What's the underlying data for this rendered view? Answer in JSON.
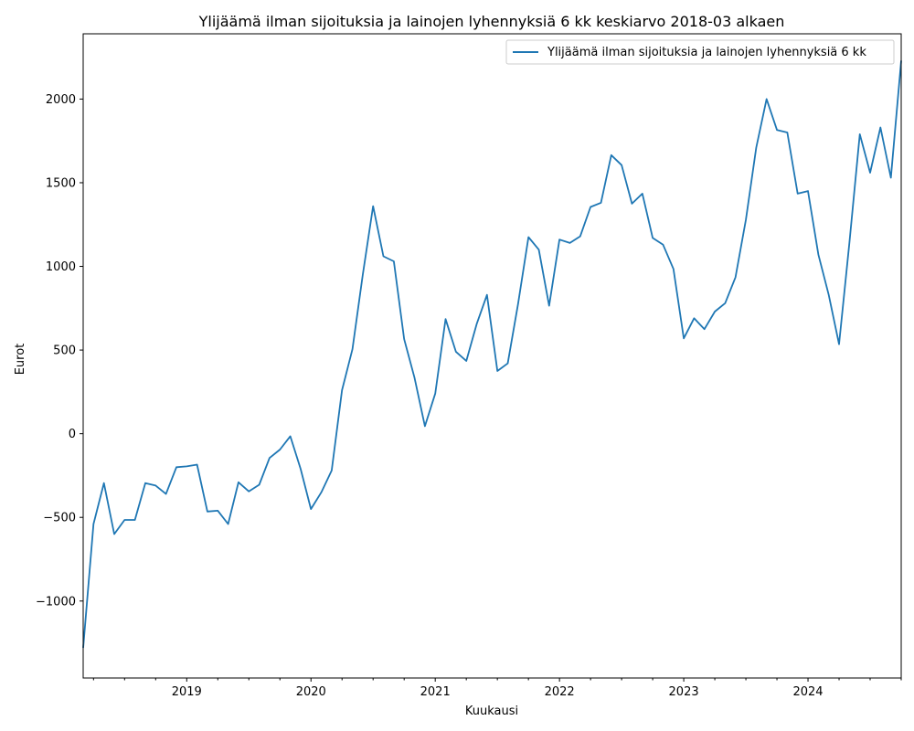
{
  "chart_data": {
    "type": "line",
    "title": "Ylijäämä ilman sijoituksia ja lainojen lyhennyksiä 6 kk keskiarvo 2018-03 alkaen",
    "xlabel": "Kuukausi",
    "ylabel": "Eurot",
    "xlim": [
      "2018-03",
      "2024-10"
    ],
    "ylim": [
      -1460,
      2390
    ],
    "y_ticks": [
      -1000,
      -500,
      0,
      500,
      1000,
      1500,
      2000
    ],
    "x_ticks": [
      "2019",
      "2020",
      "2021",
      "2022",
      "2023",
      "2024"
    ],
    "grid": false,
    "legend_position": "top-right",
    "line_color": "#1f77b4",
    "series": [
      {
        "name": "Ylijäämä ilman sijoituksia ja lainojen lyhennyksiä 6 kk",
        "x": [
          "2018-03",
          "2018-04",
          "2018-05",
          "2018-06",
          "2018-07",
          "2018-08",
          "2018-09",
          "2018-10",
          "2018-11",
          "2018-12",
          "2019-01",
          "2019-02",
          "2019-03",
          "2019-04",
          "2019-05",
          "2019-06",
          "2019-07",
          "2019-08",
          "2019-09",
          "2019-10",
          "2019-11",
          "2019-12",
          "2020-01",
          "2020-02",
          "2020-03",
          "2020-04",
          "2020-05",
          "2020-06",
          "2020-07",
          "2020-08",
          "2020-09",
          "2020-10",
          "2020-11",
          "2020-12",
          "2021-01",
          "2021-02",
          "2021-03",
          "2021-04",
          "2021-05",
          "2021-06",
          "2021-07",
          "2021-08",
          "2021-09",
          "2021-10",
          "2021-11",
          "2021-12",
          "2022-01",
          "2022-02",
          "2022-03",
          "2022-04",
          "2022-05",
          "2022-06",
          "2022-07",
          "2022-08",
          "2022-09",
          "2022-10",
          "2022-11",
          "2022-12",
          "2023-01",
          "2023-02",
          "2023-03",
          "2023-04",
          "2023-05",
          "2023-06",
          "2023-07",
          "2023-08",
          "2023-09",
          "2023-10",
          "2023-11",
          "2023-12",
          "2024-01",
          "2024-02",
          "2024-03",
          "2024-04",
          "2024-05",
          "2024-06",
          "2024-07",
          "2024-08",
          "2024-09",
          "2024-10"
        ],
        "values": [
          -1280,
          -540,
          -295,
          -600,
          -515,
          -515,
          -295,
          -310,
          -360,
          -200,
          -195,
          -185,
          -465,
          -460,
          -540,
          -290,
          -345,
          -305,
          -145,
          -95,
          -15,
          -210,
          -450,
          -350,
          -220,
          260,
          505,
          950,
          1360,
          1060,
          1030,
          565,
          335,
          45,
          240,
          685,
          490,
          435,
          655,
          830,
          375,
          420,
          775,
          1175,
          1100,
          765,
          1160,
          1140,
          1180,
          1355,
          1380,
          1665,
          1605,
          1375,
          1435,
          1170,
          1130,
          985,
          570,
          690,
          625,
          730,
          780,
          935,
          1280,
          1710,
          2000,
          1815,
          1800,
          1435,
          1450,
          1070,
          830,
          535,
          1145,
          1790,
          1560,
          1830,
          1530,
          2230
        ]
      }
    ]
  }
}
